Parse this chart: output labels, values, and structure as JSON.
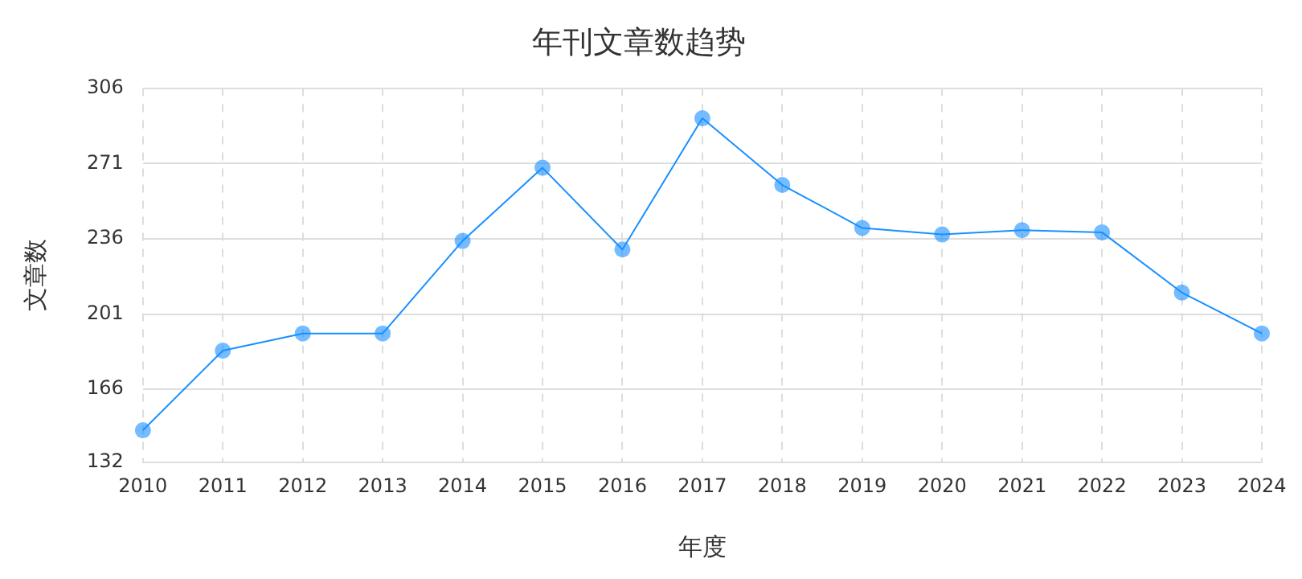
{
  "chart_data": {
    "type": "line",
    "title": "年刊文章数趋势",
    "xlabel": "年度",
    "ylabel": "文章数",
    "categories": [
      "2010",
      "2011",
      "2012",
      "2013",
      "2014",
      "2015",
      "2016",
      "2017",
      "2018",
      "2019",
      "2020",
      "2021",
      "2022",
      "2023",
      "2024"
    ],
    "series": [
      {
        "color": "#1890ff",
        "values": [
          147,
          184,
          192,
          192,
          235,
          269,
          231,
          292,
          261,
          241,
          238,
          240,
          239,
          211,
          192
        ]
      }
    ],
    "ylim": [
      132,
      306
    ],
    "yticks": [
      132,
      166,
      201,
      236,
      271,
      306
    ],
    "grid": true,
    "marker": "circle",
    "legend": false
  }
}
